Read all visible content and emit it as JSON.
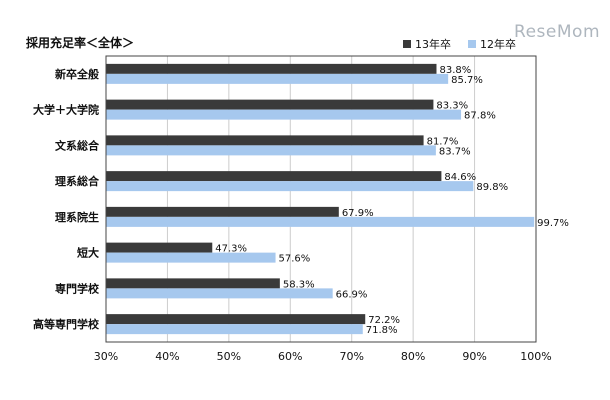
{
  "watermark": "ReseMom",
  "colors": {
    "s13": "#3a3a3a",
    "s12": "#a6c8ee",
    "frame": "#444444",
    "grid": "#cccccc"
  },
  "chart_data": {
    "type": "bar",
    "orientation": "horizontal",
    "title": "採用充足率＜全体＞",
    "categories": [
      "新卒全般",
      "大学＋大学院",
      "文系総合",
      "理系総合",
      "理系院生",
      "短大",
      "専門学校",
      "高等専門学校"
    ],
    "series": [
      {
        "name": "13年卒",
        "values": [
          83.8,
          83.3,
          81.7,
          84.6,
          67.9,
          47.3,
          58.3,
          72.2
        ]
      },
      {
        "name": "12年卒",
        "values": [
          85.7,
          87.8,
          83.7,
          89.8,
          99.7,
          57.6,
          66.9,
          71.8
        ]
      }
    ],
    "value_labels": {
      "13年卒": [
        "83.8%",
        "83.3%",
        "81.7%",
        "84.6%",
        "67.9%",
        "47.3%",
        "58.3%",
        "72.2%"
      ],
      "12年卒": [
        "85.7%",
        "87.8%",
        "83.7%",
        "89.8%",
        "99.7%",
        "57.6%",
        "66.9%",
        "71.8%"
      ]
    },
    "xlim": [
      30,
      100
    ],
    "xticks": [
      30,
      40,
      50,
      60,
      70,
      80,
      90,
      100
    ],
    "xtick_labels": [
      "30%",
      "40%",
      "50%",
      "60%",
      "70%",
      "80%",
      "90%",
      "100%"
    ],
    "grid": true,
    "legend": "top-right"
  }
}
